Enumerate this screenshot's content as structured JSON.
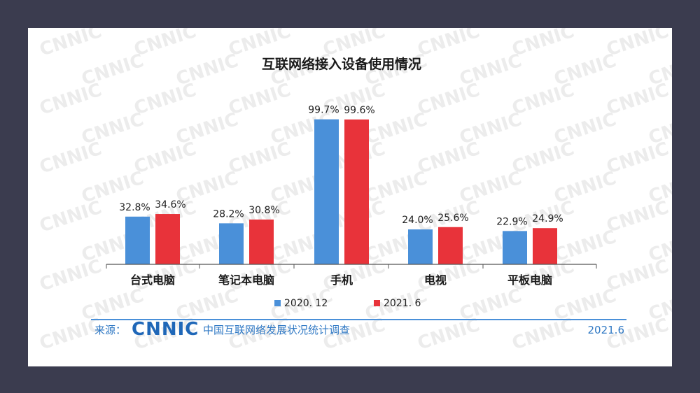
{
  "chart_data": {
    "type": "bar",
    "title": "互联网络接入设备使用情况",
    "categories": [
      "台式电脑",
      "笔记本电脑",
      "手机",
      "电视",
      "平板电脑"
    ],
    "series": [
      {
        "name": "2020. 12",
        "values": [
          32.8,
          28.2,
          99.7,
          24.0,
          22.9
        ],
        "color": "#4a90d9"
      },
      {
        "name": "2021. 6",
        "values": [
          34.6,
          30.8,
          99.6,
          25.6,
          24.9
        ],
        "color": "#e8333a"
      }
    ],
    "labels": [
      [
        "32.8%",
        "28.2%",
        "99.7%",
        "24.0%",
        "22.9%"
      ],
      [
        "34.6%",
        "30.8%",
        "99.6%",
        "25.6%",
        "24.9%"
      ]
    ],
    "ylim": [
      0,
      100
    ],
    "value_unit": "%",
    "legend_position": "bottom-center",
    "grid": false
  },
  "footer": {
    "source_label": "来源：",
    "logo_text": "CNNIC",
    "org": "中国互联网络发展状况统计调查",
    "date": "2021.6"
  },
  "watermark_text": "CNNIC",
  "colors": {
    "series_blue": "#4a90d9",
    "series_red": "#e8333a",
    "accent": "#2f78c4"
  }
}
